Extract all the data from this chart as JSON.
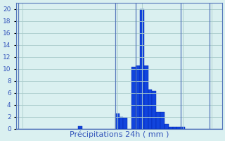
{
  "xlabel": "Précipitations 24h ( mm )",
  "background_color": "#daf0f0",
  "bar_color": "#1144dd",
  "bar_edge_color": "#0022aa",
  "grid_color": "#aacccc",
  "vline_color": "#5577bb",
  "tick_color": "#3355bb",
  "ylim": [
    0,
    21
  ],
  "yticks": [
    0,
    2,
    4,
    6,
    8,
    10,
    12,
    14,
    16,
    18,
    20
  ],
  "n_bars": 50,
  "values": [
    0,
    0,
    0,
    0,
    0,
    0,
    0,
    0,
    0,
    0,
    0,
    0,
    0,
    0,
    0,
    0.4,
    0,
    0,
    0,
    0,
    0,
    0,
    0,
    0,
    2.5,
    2.0,
    1.8,
    0,
    10.3,
    10.5,
    20.0,
    10.5,
    6.5,
    6.3,
    2.8,
    2.8,
    0.8,
    0.3,
    0.3,
    0.3,
    0.3,
    0,
    0,
    0,
    0,
    0,
    0,
    0,
    0,
    0
  ]
}
